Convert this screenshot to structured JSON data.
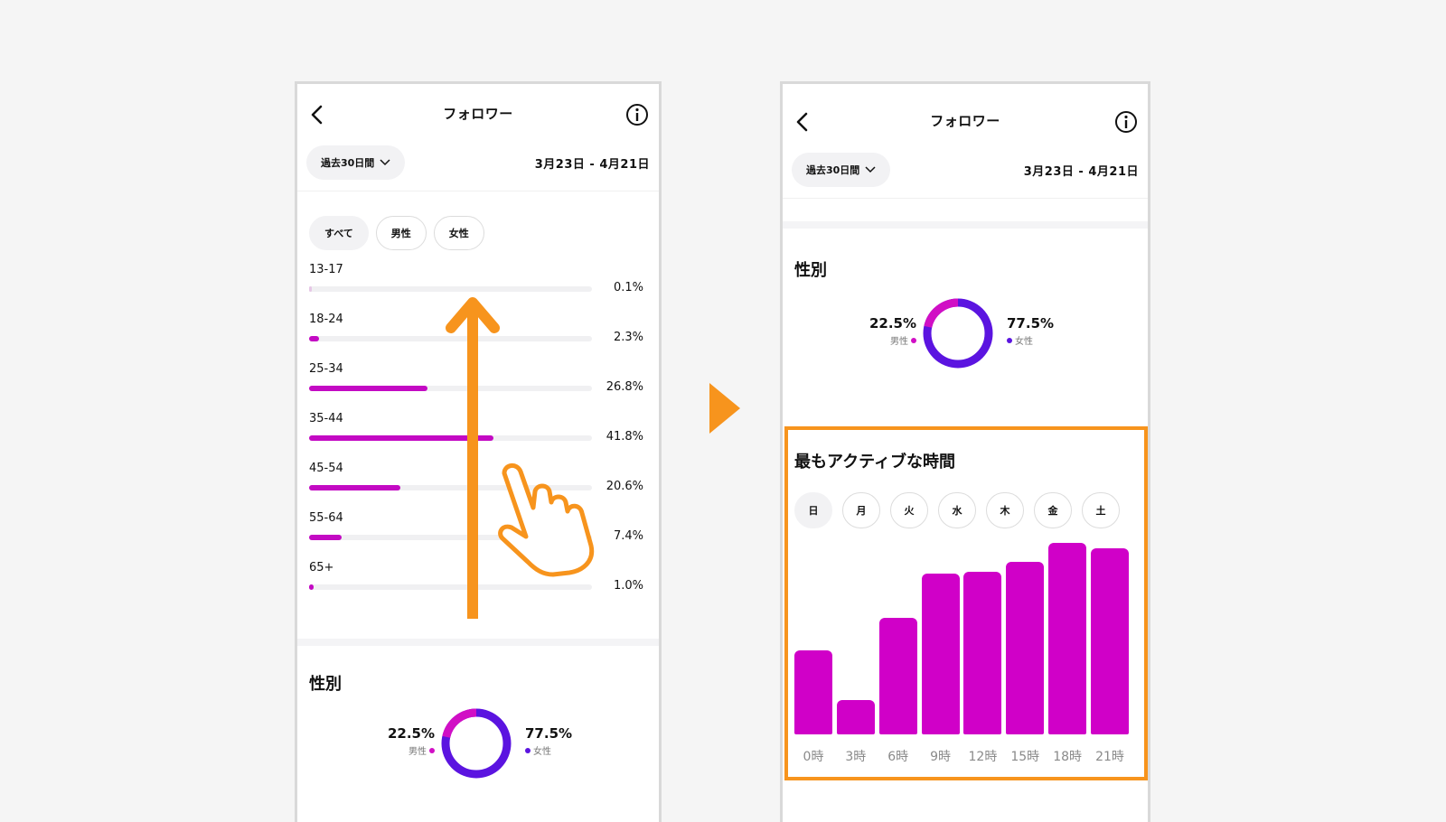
{
  "header": {
    "title": "フォロワー"
  },
  "period": {
    "label": "過去30日間",
    "range": "3月23日 - 4月21日"
  },
  "filters": [
    "すべて",
    "男性",
    "女性"
  ],
  "age": [
    {
      "label": "13-17",
      "pct": "0.1%",
      "value": 0.1
    },
    {
      "label": "18-24",
      "pct": "2.3%",
      "value": 2.3
    },
    {
      "label": "25-34",
      "pct": "26.8%",
      "value": 26.8
    },
    {
      "label": "35-44",
      "pct": "41.8%",
      "value": 41.8
    },
    {
      "label": "45-54",
      "pct": "20.6%",
      "value": 20.6
    },
    {
      "label": "55-64",
      "pct": "7.4%",
      "value": 7.4
    },
    {
      "label": "65+",
      "pct": "1.0%",
      "value": 1.0
    }
  ],
  "gender": {
    "title": "性別",
    "male": {
      "pct": "22.5%",
      "label": "男性",
      "value": 22.5,
      "color": "#d10fc5"
    },
    "female": {
      "pct": "77.5%",
      "label": "女性",
      "value": 77.5,
      "color": "#5b14e0"
    }
  },
  "active": {
    "title": "最もアクティブな時間",
    "days": [
      "日",
      "月",
      "火",
      "水",
      "木",
      "金",
      "土"
    ]
  },
  "chart_data": {
    "type": "bar",
    "categories": [
      "0時",
      "3時",
      "6時",
      "9時",
      "12時",
      "15時",
      "18時",
      "21時"
    ],
    "values": [
      44,
      18,
      61,
      84,
      85,
      90,
      100,
      97
    ],
    "ylim": [
      0,
      100
    ]
  },
  "colors": {
    "accent": "#d000c8",
    "highlight": "#f7941d",
    "bar_fill": "#c30ac3"
  }
}
